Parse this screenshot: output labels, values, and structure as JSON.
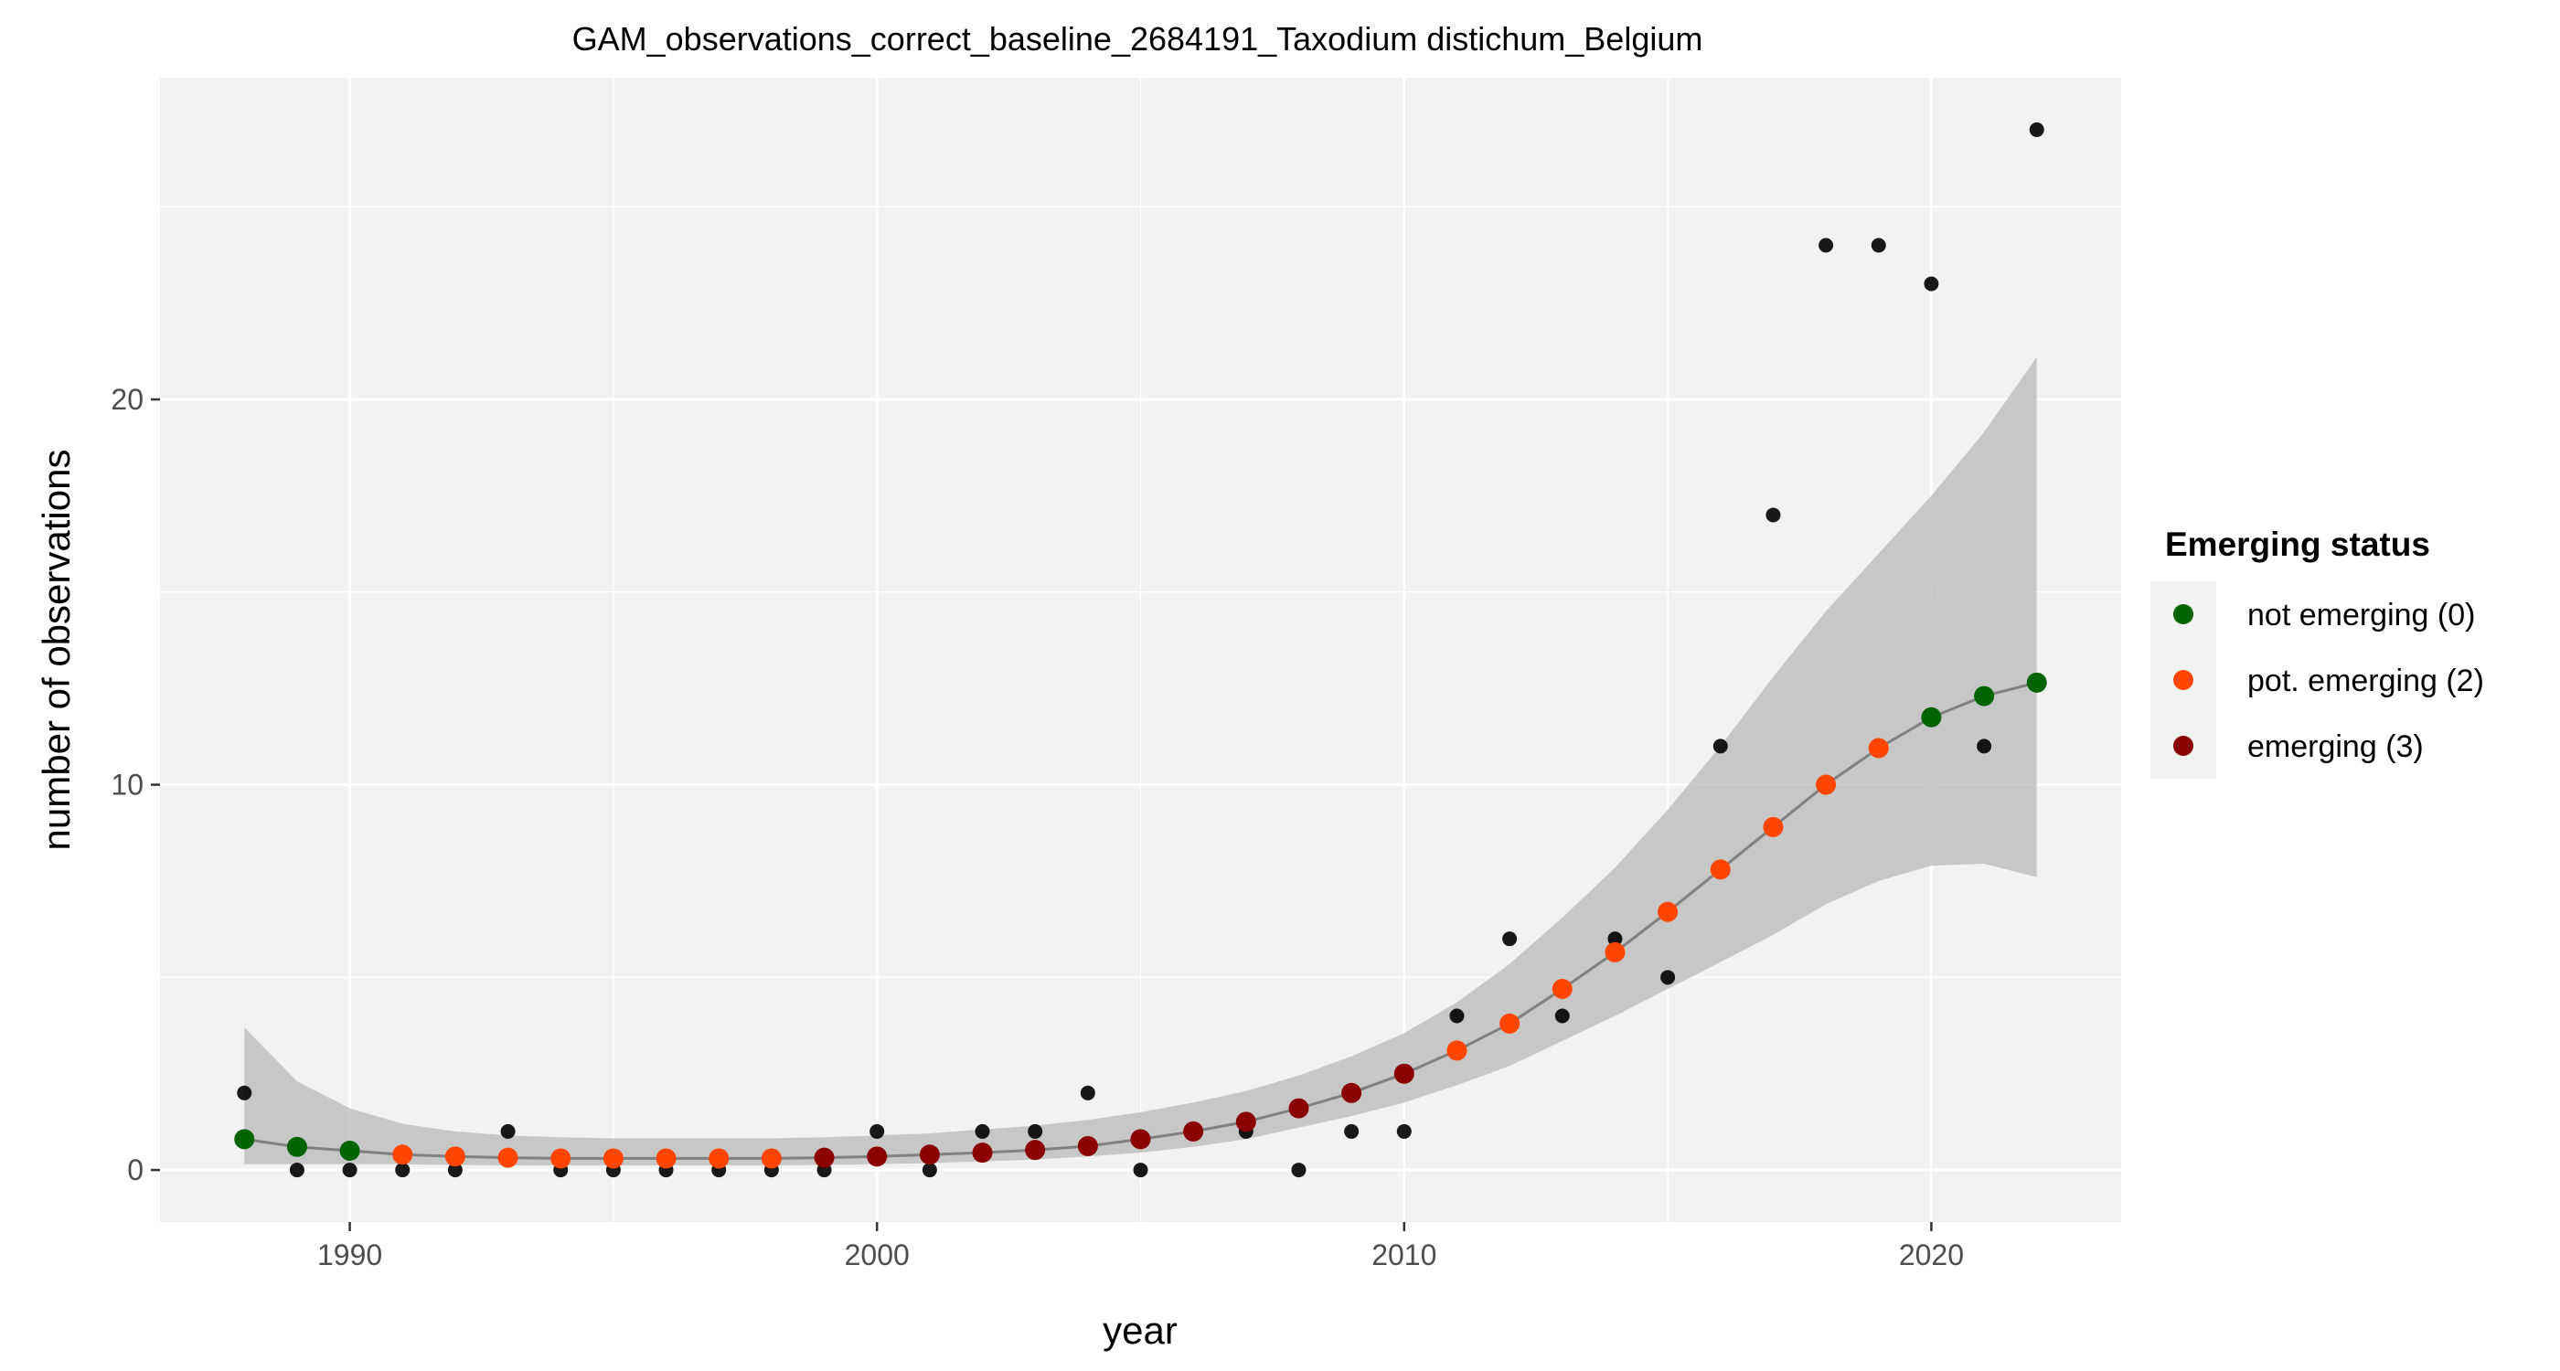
{
  "chart_data": {
    "type": "scatter",
    "title": "GAM_observations_correct_baseline_2684191_Taxodium distichum_Belgium",
    "xlabel": "year",
    "ylabel": "number of observations",
    "xlim": [
      1986.4,
      2023.6
    ],
    "ylim": [
      -1.35,
      28.35
    ],
    "x_ticks": [
      1990,
      2000,
      2010,
      2020
    ],
    "y_ticks": [
      0,
      10,
      20
    ],
    "grid": true,
    "background": "#f2f2f2",
    "observed_color": "#000000",
    "fit_line_color": "#808080",
    "ribbon_color": "#bfbfbf",
    "legend": {
      "title": "Emerging status",
      "position": "right",
      "entries": [
        {
          "label": "not emerging (0)",
          "status": 0,
          "color": "#006400"
        },
        {
          "label": "pot. emerging (2)",
          "status": 2,
          "color": "#ff4500"
        },
        {
          "label": "emerging (3)",
          "status": 3,
          "color": "#8b0000"
        }
      ]
    },
    "years": [
      1988,
      1989,
      1990,
      1991,
      1992,
      1993,
      1994,
      1995,
      1996,
      1997,
      1998,
      1999,
      2000,
      2001,
      2002,
      2003,
      2004,
      2005,
      2006,
      2007,
      2008,
      2009,
      2010,
      2011,
      2012,
      2013,
      2014,
      2015,
      2016,
      2017,
      2018,
      2019,
      2020,
      2021,
      2022
    ],
    "observed": [
      2,
      0,
      0,
      0,
      0,
      1,
      0,
      0,
      0,
      0,
      0,
      0,
      1,
      0,
      1,
      1,
      2,
      0,
      1,
      1,
      0,
      1,
      1,
      4,
      6,
      4,
      6,
      5,
      11,
      17,
      24,
      24,
      23,
      11,
      27
    ],
    "fitted": [
      0.8,
      0.6,
      0.5,
      0.4,
      0.35,
      0.32,
      0.3,
      0.3,
      0.3,
      0.3,
      0.3,
      0.32,
      0.35,
      0.4,
      0.45,
      0.52,
      0.62,
      0.8,
      1.0,
      1.25,
      1.6,
      2.0,
      2.5,
      3.1,
      3.8,
      4.7,
      5.65,
      6.7,
      7.8,
      8.9,
      10.0,
      10.95,
      11.75,
      12.3,
      12.65
    ],
    "ci_lower": [
      0.15,
      0.15,
      0.15,
      0.15,
      0.13,
      0.12,
      0.12,
      0.12,
      0.12,
      0.12,
      0.12,
      0.13,
      0.15,
      0.18,
      0.22,
      0.27,
      0.35,
      0.45,
      0.6,
      0.8,
      1.1,
      1.4,
      1.75,
      2.2,
      2.7,
      3.35,
      4.0,
      4.7,
      5.4,
      6.1,
      6.9,
      7.5,
      7.9,
      7.95,
      7.6
    ],
    "ci_upper": [
      3.7,
      2.3,
      1.6,
      1.2,
      1.0,
      0.9,
      0.85,
      0.82,
      0.82,
      0.82,
      0.82,
      0.85,
      0.9,
      0.95,
      1.05,
      1.15,
      1.3,
      1.5,
      1.75,
      2.05,
      2.45,
      2.95,
      3.55,
      4.35,
      5.35,
      6.55,
      7.85,
      9.35,
      11.0,
      12.8,
      14.5,
      16.0,
      17.5,
      19.15,
      21.1
    ],
    "status": [
      0,
      0,
      0,
      2,
      2,
      2,
      2,
      2,
      2,
      2,
      2,
      3,
      3,
      3,
      3,
      3,
      3,
      3,
      3,
      3,
      3,
      3,
      3,
      2,
      2,
      2,
      2,
      2,
      2,
      2,
      2,
      2,
      0,
      0,
      0
    ]
  }
}
